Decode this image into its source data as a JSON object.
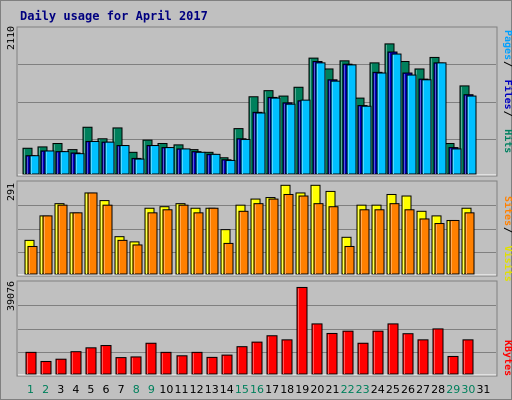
{
  "chart_data": [
    {
      "type": "bar",
      "title": "Daily usage for April 2017",
      "ymax_label": "2110",
      "ylim": [
        0,
        2110
      ],
      "right_labels": [
        {
          "text": "Pages",
          "color": "#00a0ff"
        },
        {
          "text": "Files",
          "color": "#0000c0"
        },
        {
          "text": "Hits",
          "color": "#008060"
        }
      ],
      "series": [
        {
          "name": "Hits",
          "color": "#00805c",
          "values": [
            380,
            400,
            450,
            360,
            690,
            520,
            680,
            320,
            500,
            450,
            430,
            360,
            320,
            240,
            670,
            1140,
            1230,
            1150,
            1280,
            1710,
            1550,
            1670,
            1120,
            1640,
            1920,
            1660,
            1550,
            1720,
            450,
            1300
          ]
        },
        {
          "name": "Files",
          "color": "#0000c0",
          "values": [
            270,
            340,
            330,
            310,
            480,
            470,
            420,
            230,
            420,
            390,
            370,
            330,
            290,
            210,
            520,
            910,
            1130,
            1050,
            1080,
            1660,
            1390,
            1620,
            1010,
            1500,
            1800,
            1490,
            1400,
            1640,
            390,
            1170
          ]
        },
        {
          "name": "Pages",
          "color": "#00c0ff",
          "values": [
            270,
            340,
            330,
            300,
            480,
            470,
            420,
            220,
            420,
            390,
            370,
            320,
            290,
            200,
            510,
            900,
            1120,
            1030,
            1090,
            1640,
            1370,
            1610,
            1000,
            1490,
            1770,
            1460,
            1390,
            1640,
            370,
            1150
          ]
        }
      ]
    },
    {
      "type": "bar",
      "ymax_label": "291",
      "ylim": [
        0,
        291
      ],
      "right_labels": [
        {
          "text": "Sites",
          "color": "#ff8000"
        },
        {
          "text": "Visits",
          "color": "#e0e000"
        }
      ],
      "series": [
        {
          "name": "Visits",
          "color": "#ffff00",
          "values": [
            110,
            190,
            230,
            200,
            265,
            240,
            122,
            105,
            215,
            220,
            230,
            215,
            215,
            145,
            225,
            245,
            250,
            290,
            265,
            290,
            270,
            120,
            225,
            225,
            260,
            255,
            205,
            190,
            175,
            215
          ]
        },
        {
          "name": "Sites",
          "color": "#ff8000",
          "values": [
            90,
            190,
            225,
            200,
            265,
            225,
            110,
            95,
            200,
            210,
            225,
            200,
            215,
            100,
            205,
            230,
            245,
            260,
            255,
            230,
            220,
            90,
            210,
            210,
            230,
            210,
            180,
            165,
            175,
            200
          ]
        }
      ]
    },
    {
      "type": "bar",
      "ymax_label": "39076",
      "ylim": [
        0,
        39076
      ],
      "right_labels": [
        {
          "text": "KBytes",
          "color": "#ff0000"
        }
      ],
      "series": [
        {
          "name": "KBytes",
          "color": "#ff0000",
          "values": [
            9500,
            5500,
            6500,
            9800,
            11500,
            12500,
            7200,
            7500,
            13500,
            9500,
            8000,
            9500,
            7300,
            8300,
            12000,
            14000,
            16800,
            15000,
            38000,
            22000,
            17800,
            18800,
            13500,
            18800,
            22000,
            17700,
            15000,
            19800,
            7700,
            15000
          ]
        }
      ]
    }
  ],
  "days": [
    {
      "label": "1",
      "weekend": true
    },
    {
      "label": "2",
      "weekend": true
    },
    {
      "label": "3",
      "weekend": false
    },
    {
      "label": "4",
      "weekend": false
    },
    {
      "label": "5",
      "weekend": false
    },
    {
      "label": "6",
      "weekend": false
    },
    {
      "label": "7",
      "weekend": false
    },
    {
      "label": "8",
      "weekend": true
    },
    {
      "label": "9",
      "weekend": true
    },
    {
      "label": "10",
      "weekend": false
    },
    {
      "label": "11",
      "weekend": false
    },
    {
      "label": "12",
      "weekend": false
    },
    {
      "label": "13",
      "weekend": false
    },
    {
      "label": "14",
      "weekend": false
    },
    {
      "label": "15",
      "weekend": true
    },
    {
      "label": "16",
      "weekend": true
    },
    {
      "label": "17",
      "weekend": false
    },
    {
      "label": "18",
      "weekend": false
    },
    {
      "label": "19",
      "weekend": false
    },
    {
      "label": "20",
      "weekend": false
    },
    {
      "label": "21",
      "weekend": false
    },
    {
      "label": "22",
      "weekend": true
    },
    {
      "label": "23",
      "weekend": true
    },
    {
      "label": "24",
      "weekend": false
    },
    {
      "label": "25",
      "weekend": false
    },
    {
      "label": "26",
      "weekend": false
    },
    {
      "label": "27",
      "weekend": false
    },
    {
      "label": "28",
      "weekend": false
    },
    {
      "label": "29",
      "weekend": true
    },
    {
      "label": "30",
      "weekend": true
    },
    {
      "label": "31",
      "weekend": false
    }
  ],
  "colors": {
    "background": "#c0c0c0",
    "gridline": "#808080",
    "title": "#000080",
    "weekend_label": "#00805c",
    "weekday_label": "#000000"
  }
}
